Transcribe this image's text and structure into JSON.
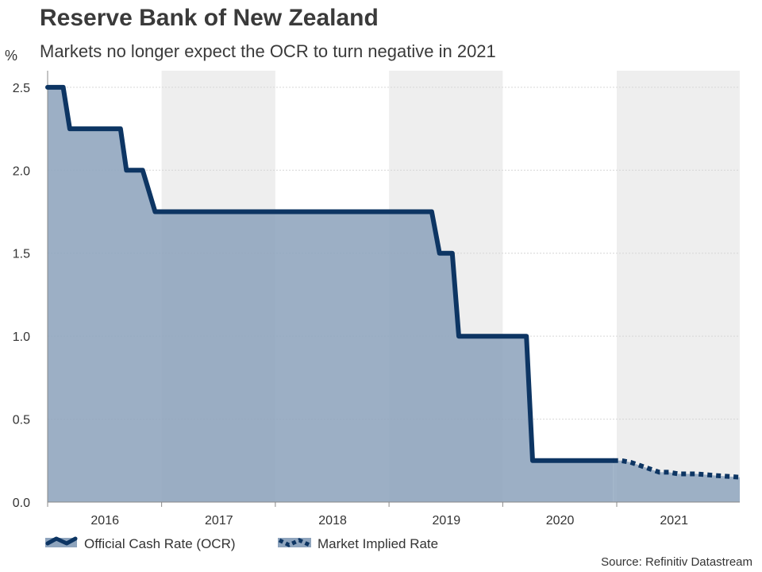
{
  "header": {
    "title": "Reserve Bank of New Zealand",
    "subtitle": "Markets no longer expect the OCR to turn negative in 2021",
    "unit": "%"
  },
  "footer": {
    "source": "Source: Refinitiv Datastream"
  },
  "colors": {
    "line": "#0d3563",
    "fill": "#8ea4bd",
    "band": "#eeeeee",
    "grid": "#d6d6d6",
    "axis": "#888888"
  },
  "chart_data": {
    "type": "area",
    "x_range": [
      "2015-07-01",
      "2021-07-31"
    ],
    "ylim": [
      0,
      2.6
    ],
    "yticks": [
      0.0,
      0.5,
      1.0,
      1.5,
      2.0,
      2.5
    ],
    "ytick_labels": [
      "0.0",
      "0.5",
      "1.0",
      "1.5",
      "2.0",
      "2.5"
    ],
    "xtick_labels": [
      "2016",
      "2017",
      "2018",
      "2019",
      "2020",
      "2021"
    ],
    "xtick_centers": [
      "2016-01-01",
      "2017-01-01",
      "2018-01-01",
      "2019-01-01",
      "2020-01-01",
      "2021-01-01"
    ],
    "year_boundaries": [
      "2015-07-01",
      "2016-07-01",
      "2017-07-01",
      "2018-07-01",
      "2019-07-01",
      "2020-07-01"
    ],
    "shaded_bands": [
      [
        "2016-07-01",
        "2017-07-01"
      ],
      [
        "2018-07-01",
        "2019-07-01"
      ],
      [
        "2020-07-01",
        "2021-07-31"
      ]
    ],
    "grid": true,
    "legend_position": "bottom-left",
    "series": [
      {
        "name": "Official Cash Rate (OCR)",
        "style": "solid",
        "points": [
          [
            "2015-07-01",
            2.5
          ],
          [
            "2015-08-20",
            2.5
          ],
          [
            "2015-09-10",
            2.25
          ],
          [
            "2016-02-20",
            2.25
          ],
          [
            "2016-03-10",
            2.0
          ],
          [
            "2016-05-01",
            2.0
          ],
          [
            "2016-06-10",
            1.75
          ],
          [
            "2018-11-15",
            1.75
          ],
          [
            "2018-12-10",
            1.5
          ],
          [
            "2019-01-20",
            1.5
          ],
          [
            "2019-02-10",
            1.0
          ],
          [
            "2019-09-15",
            1.0
          ],
          [
            "2019-10-05",
            0.25
          ],
          [
            "2020-06-20",
            0.25
          ]
        ]
      },
      {
        "name": "Market Implied Rate",
        "style": "dotted",
        "points": [
          [
            "2020-06-20",
            0.25
          ],
          [
            "2020-07-15",
            0.25
          ],
          [
            "2020-08-15",
            0.24
          ],
          [
            "2020-09-15",
            0.22
          ],
          [
            "2020-10-15",
            0.2
          ],
          [
            "2020-11-15",
            0.18
          ],
          [
            "2020-12-15",
            0.18
          ],
          [
            "2021-01-15",
            0.17
          ],
          [
            "2021-03-15",
            0.17
          ],
          [
            "2021-05-15",
            0.16
          ],
          [
            "2021-07-31",
            0.15
          ]
        ]
      }
    ]
  }
}
